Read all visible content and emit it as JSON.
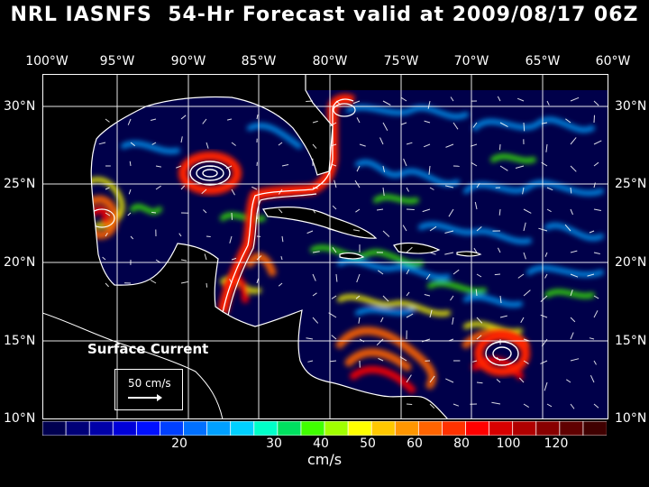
{
  "title": "NRL IASNFS  54-Hr Forecast valid at 2009/08/17 06Z",
  "longitude_labels": [
    "100°W",
    "95°W",
    "90°W",
    "85°W",
    "80°W",
    "75°W",
    "70°W",
    "65°W",
    "60°W"
  ],
  "latitude_labels": [
    "30°N",
    "25°N",
    "20°N",
    "15°N",
    "10°N"
  ],
  "map_label": "Surface Current",
  "reference_vector": {
    "label": "50 cm/s",
    "speed": 50
  },
  "colorbar": {
    "ticks": [
      "20",
      "30",
      "40",
      "50",
      "60",
      "80",
      "100",
      "120"
    ],
    "units": "cm/s",
    "colors": [
      "#000050",
      "#000078",
      "#0000a8",
      "#0000d8",
      "#0010ff",
      "#0040ff",
      "#0070ff",
      "#00a0ff",
      "#00d0ff",
      "#00ffc8",
      "#00e060",
      "#40ff00",
      "#a0ff00",
      "#ffff00",
      "#ffc800",
      "#ff9600",
      "#ff6400",
      "#ff3200",
      "#ff0000",
      "#d80000",
      "#b00000",
      "#880000",
      "#600000",
      "#400000"
    ]
  },
  "colors": {
    "background": "#000000",
    "ocean": "#00004a",
    "land": "#000000",
    "coast": "#ffffff"
  }
}
